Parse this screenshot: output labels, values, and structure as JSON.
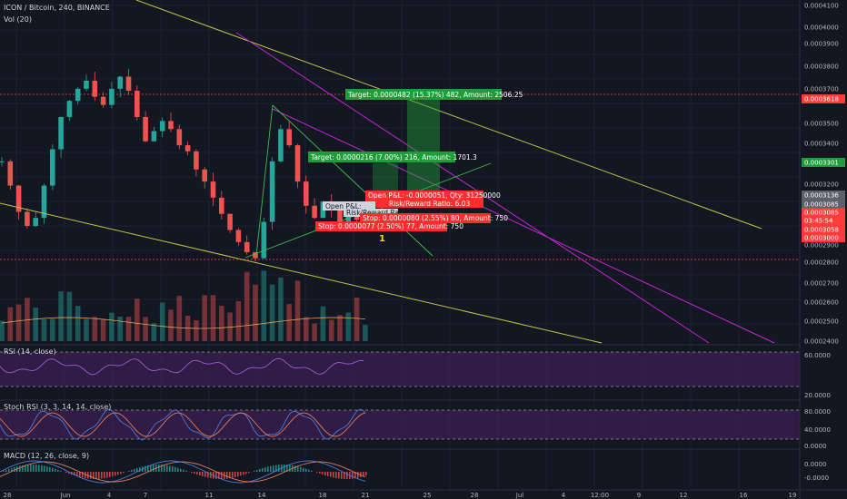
{
  "header": {
    "title": "ICON / Bitcoin, 240, BINANCE",
    "volume_label": "Vol (20)"
  },
  "indicators": {
    "rsi_label": "RSI (14, close)",
    "stoch_label": "Stoch RSI (3, 3, 14, 14, close)",
    "macd_label": "MACD (12, 26, close, 9)"
  },
  "price_axis": {
    "labels": [
      "0.0004100",
      "0.0004000",
      "0.0003900",
      "0.0003800",
      "0.0003700",
      "0.0003500",
      "0.0003400",
      "0.0003200",
      "0.0003000",
      "0.0002900",
      "0.0002800",
      "0.0002700",
      "0.0002600",
      "0.0002500",
      "0.0002400"
    ],
    "badges": [
      {
        "text": "0.0003618",
        "color": "#ff3b3b"
      },
      {
        "text": "0.0003301",
        "color": "#1f9d3a"
      },
      {
        "text": "0.0003136",
        "color": "#5d606b"
      },
      {
        "text": "0.0003085",
        "color": "#5d606b"
      },
      {
        "text": "0.0003085",
        "color": "#ff3b3b"
      },
      {
        "text": "03:45:54",
        "color": "#ff3b3b"
      },
      {
        "text": "0.0003058",
        "color": "#ff3b3b"
      },
      {
        "text": "0.0003000",
        "color": "#ff3b3b"
      }
    ]
  },
  "rsi_axis": [
    "60.0000",
    "20.0000"
  ],
  "stoch_axis": [
    "80.0000",
    "40.0000",
    "0.0000"
  ],
  "macd_axis": [
    "0.0000",
    "-0.0000"
  ],
  "time_axis": [
    "28",
    "Jun",
    "4",
    "7",
    "11",
    "14",
    "18",
    "21",
    "25",
    "28",
    "Jul",
    "4",
    "12:00",
    "9",
    "12",
    "16",
    "19"
  ],
  "position_boxes": {
    "target_outer": "Target: 0.0000482 (15.37%) 482, Amount: 2506.25",
    "target_inner": "Target: 0.0000216 (7.00%) 216, Amount: 1701.3",
    "open_pl": "Open P&L: -0.0000051, Qty: 31250000",
    "risk_reward": "Risk/Reward Ratio: 6.03",
    "stop_inner": "Stop: 0.0000080 (2.55%) 80, Amount: 750",
    "stop_outer": "Stop: 0.0000077 (2.50%) 77, Amount: 750",
    "open_pl_2": "Open P&L:",
    "risk_reward_2": "Risk/Reward Ratio: 6"
  },
  "annotation": "1",
  "colors": {
    "up": "#26a69a",
    "down": "#ef5350",
    "channel": "#c3c34a",
    "magenta": "#c026d3",
    "target": "#1f9d3a",
    "stop": "#ff2d2d",
    "indicator_bg": "#3b1f52"
  },
  "chart_data": {
    "type": "candlestick",
    "title": "ICON / Bitcoin, 240, BINANCE",
    "xlabel": "",
    "ylabel": "",
    "ylim": [
      0.00024,
      0.00041
    ],
    "grid": true,
    "legend": "top-left",
    "series": [
      {
        "name": "ICON / Bitcoin",
        "close_path": [
          0.00033,
          0.000318,
          0.000305,
          0.000298,
          0.000302,
          0.000318,
          0.000336,
          0.000352,
          0.00036,
          0.000366,
          0.00037,
          0.000362,
          0.000358,
          0.000366,
          0.000372,
          0.000365,
          0.000352,
          0.00034,
          0.000345,
          0.00035,
          0.000346,
          0.000338,
          0.000335,
          0.000326,
          0.00032,
          0.000312,
          0.000304,
          0.000296,
          0.00029,
          0.000285,
          0.000282,
          0.0003,
          0.00033,
          0.000346,
          0.000338,
          0.00032,
          0.000308,
          0.000302,
          0.00031,
          0.000306,
          0.0003,
          0.000304,
          0.000301,
          0.000306
        ]
      },
      {
        "name": "Vol (20)",
        "values": []
      }
    ],
    "levels": [
      0.0003618,
      0.0003301,
      0.0003136,
      0.0003085,
      0.0003058,
      0.0003
    ]
  }
}
